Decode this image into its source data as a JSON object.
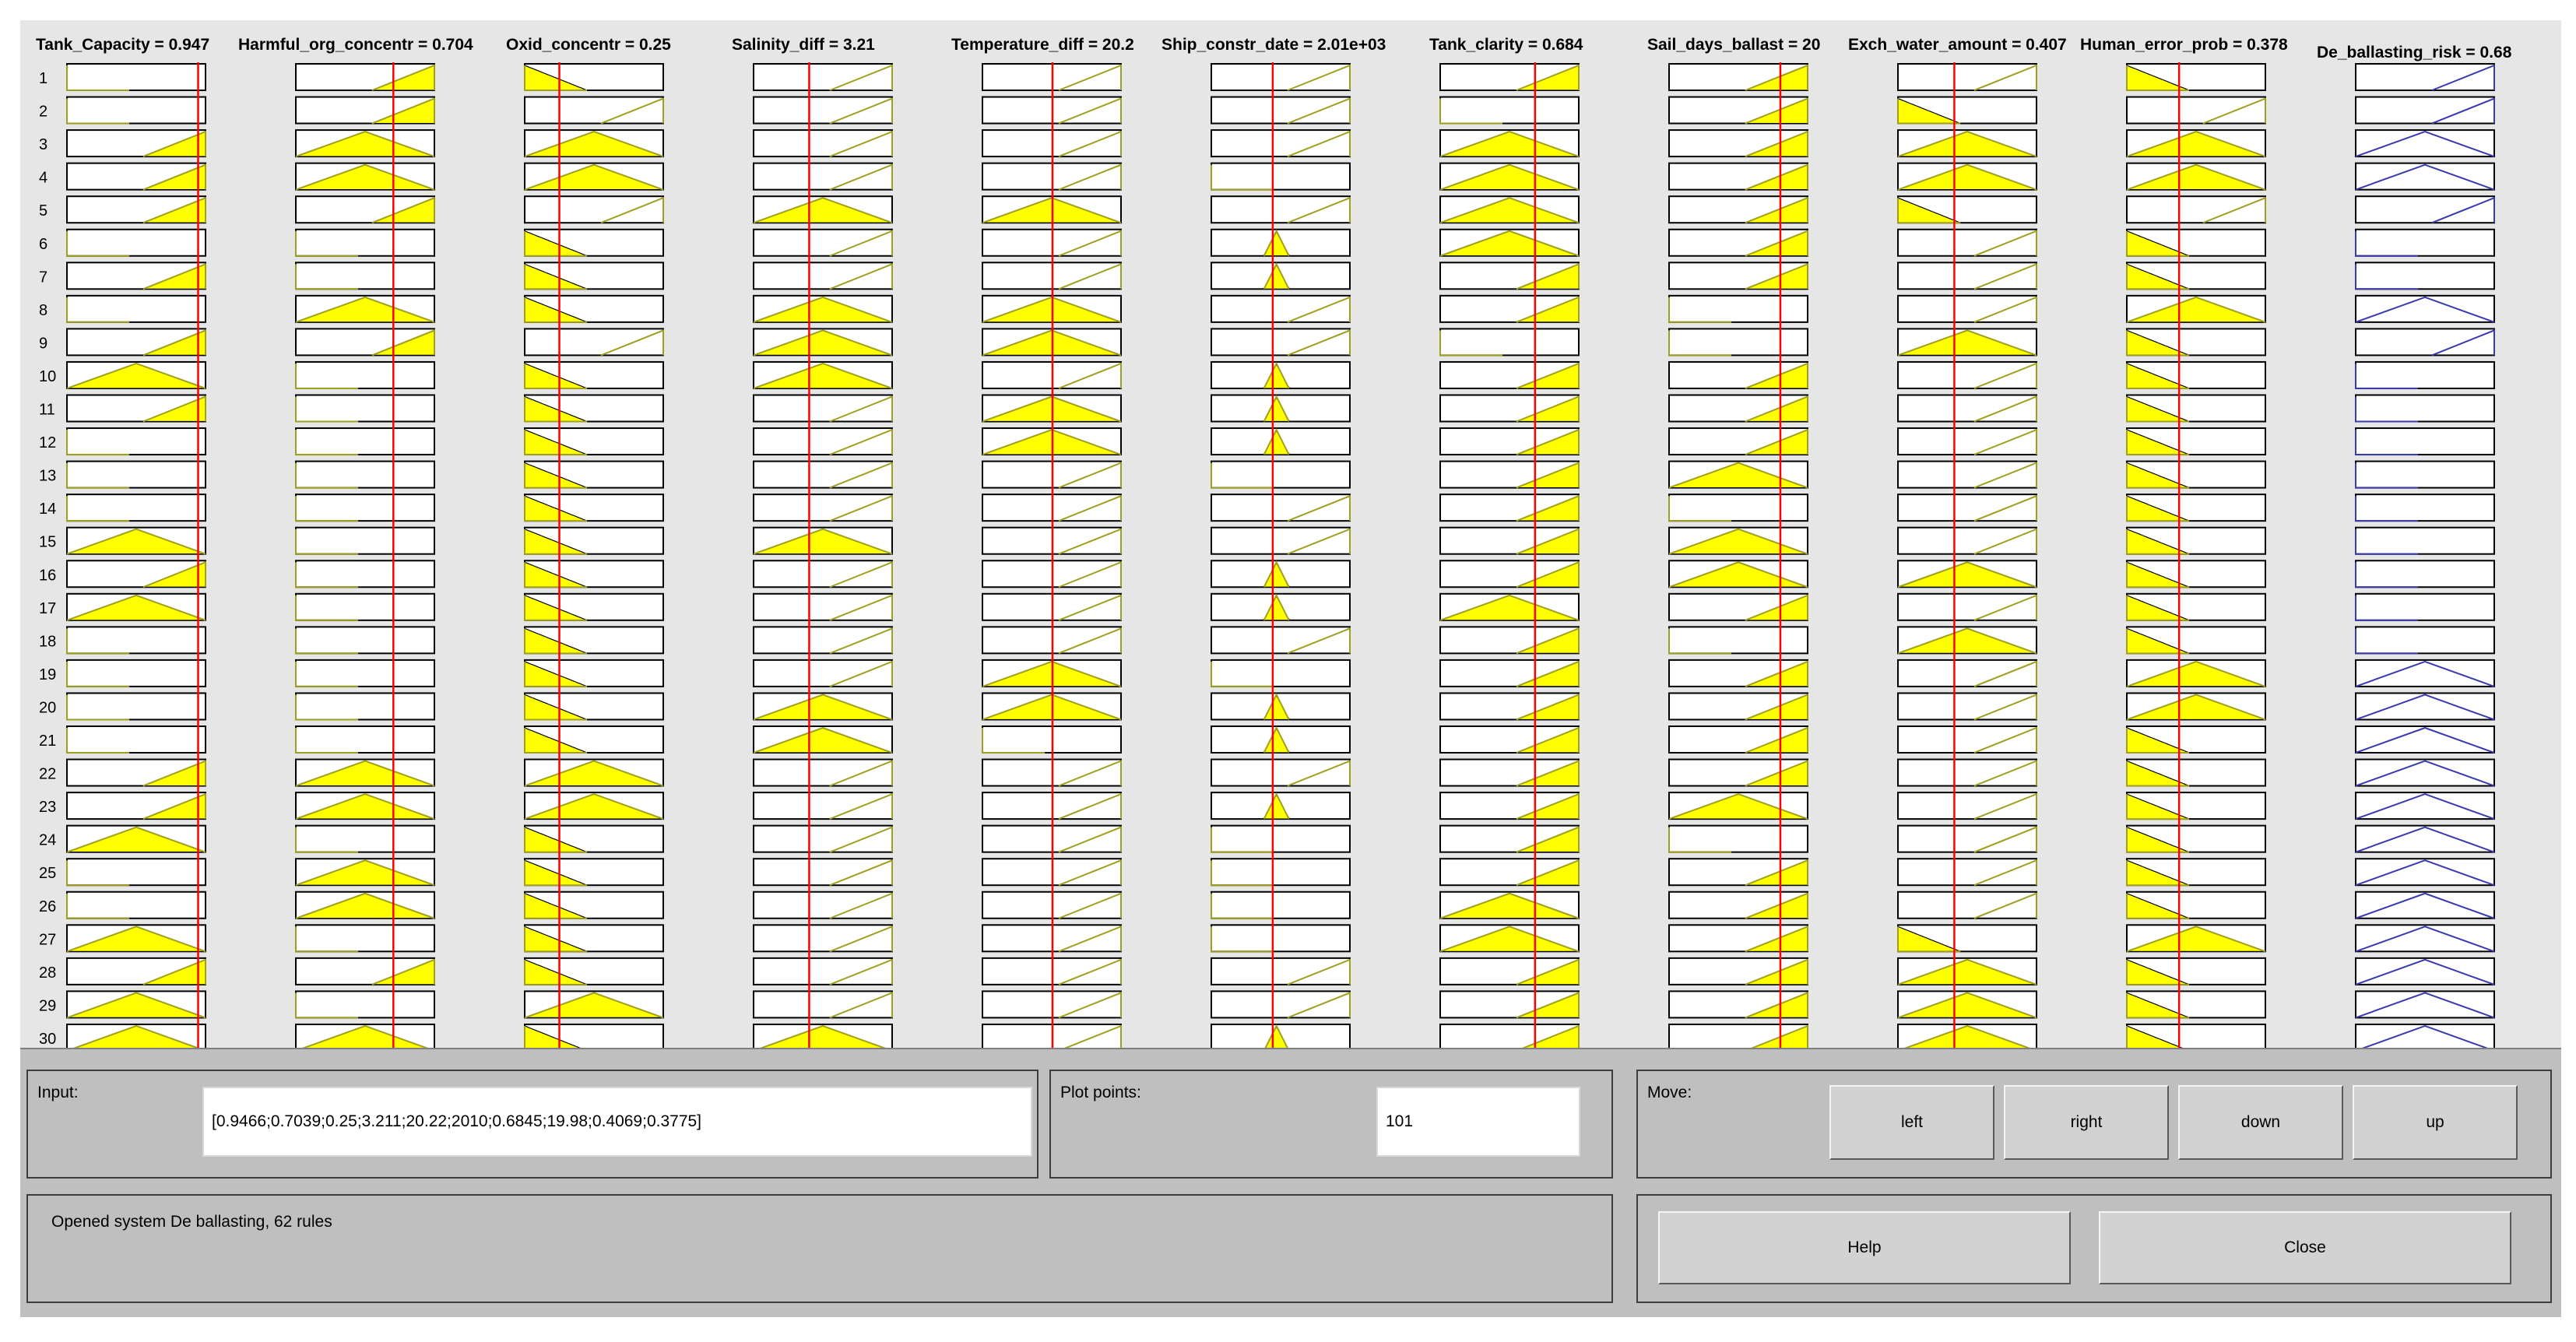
{
  "variables": [
    {
      "label": "Tank_Capacity = 0.947",
      "type": "input"
    },
    {
      "label": "Harmful_org_concentr = 0.704",
      "type": "input"
    },
    {
      "label": "Oxid_concentr = 0.25",
      "type": "input"
    },
    {
      "label": "Salinity_diff = 3.21",
      "type": "input"
    },
    {
      "label": "Temperature_diff = 20.2",
      "type": "input"
    },
    {
      "label": "Ship_constr_date = 2.01e+03",
      "type": "input"
    },
    {
      "label": "Tank_clarity = 0.684",
      "type": "input"
    },
    {
      "label": "Sail_days_ballast = 20",
      "type": "input"
    },
    {
      "label": "Exch_water_amount = 0.407",
      "type": "input"
    },
    {
      "label": "Human_error_prob = 0.378",
      "type": "input"
    },
    {
      "label": "De_ballasting_risk = 0.68",
      "type": "output"
    }
  ],
  "input_values": [
    0.9466,
    0.7039,
    0.25,
    0.4013,
    0.5055,
    0.4433,
    0.6845,
    0.8033,
    0.4069,
    0.3775
  ],
  "output_value": 0.68,
  "visible_rule_numbers": [
    "1",
    "2",
    "3",
    "4",
    "5",
    "6",
    "7",
    "8",
    "9",
    "10",
    "11",
    "12",
    "13",
    "14",
    "15",
    "16",
    "17",
    "18",
    "19",
    "20",
    "21",
    "22",
    "23",
    "24",
    "25",
    "26",
    "27",
    "28",
    "29",
    "30"
  ],
  "rules": [
    [
      "l",
      "r",
      "l",
      "r",
      "r",
      "r",
      "r",
      "r",
      "r",
      "l",
      "r"
    ],
    [
      "l",
      "r",
      "r",
      "r",
      "r",
      "r",
      "l",
      "r",
      "l",
      "r",
      "r"
    ],
    [
      "r",
      "m",
      "m",
      "r",
      "r",
      "r",
      "m",
      "r",
      "m",
      "m",
      "m"
    ],
    [
      "r",
      "m",
      "m",
      "r",
      "r",
      "l",
      "m",
      "r",
      "m",
      "m",
      "m"
    ],
    [
      "r",
      "r",
      "r",
      "m",
      "m",
      "r",
      "m",
      "r",
      "l",
      "r",
      "r"
    ],
    [
      "l",
      "l",
      "l",
      "r",
      "r",
      "s",
      "m",
      "r",
      "r",
      "l",
      "l"
    ],
    [
      "r",
      "l",
      "l",
      "r",
      "r",
      "s",
      "r",
      "r",
      "r",
      "l",
      "l"
    ],
    [
      "l",
      "m",
      "l",
      "m",
      "m",
      "r",
      "r",
      "l",
      "r",
      "m",
      "m"
    ],
    [
      "r",
      "r",
      "r",
      "m",
      "m",
      "r",
      "l",
      "l",
      "m",
      "l",
      "r"
    ],
    [
      "m",
      "l",
      "l",
      "m",
      "r",
      "s",
      "r",
      "r",
      "r",
      "l",
      "l"
    ],
    [
      "r",
      "l",
      "l",
      "r",
      "m",
      "s",
      "r",
      "r",
      "r",
      "l",
      "l"
    ],
    [
      "l",
      "l",
      "l",
      "r",
      "m",
      "s",
      "r",
      "r",
      "r",
      "l",
      "l"
    ],
    [
      "l",
      "l",
      "l",
      "r",
      "r",
      "l",
      "r",
      "m",
      "r",
      "l",
      "l"
    ],
    [
      "l",
      "l",
      "l",
      "r",
      "r",
      "r",
      "r",
      "l",
      "r",
      "l",
      "l"
    ],
    [
      "m",
      "l",
      "l",
      "m",
      "r",
      "r",
      "r",
      "m",
      "r",
      "l",
      "l"
    ],
    [
      "r",
      "l",
      "l",
      "r",
      "r",
      "s",
      "r",
      "m",
      "m",
      "l",
      "l"
    ],
    [
      "m",
      "l",
      "l",
      "r",
      "r",
      "s",
      "m",
      "r",
      "r",
      "l",
      "l"
    ],
    [
      "l",
      "l",
      "l",
      "r",
      "r",
      "r",
      "r",
      "l",
      "m",
      "l",
      "l"
    ],
    [
      "l",
      "l",
      "l",
      "r",
      "m",
      "l",
      "r",
      "r",
      "r",
      "m",
      "m"
    ],
    [
      "l",
      "l",
      "l",
      "m",
      "m",
      "s",
      "r",
      "r",
      "r",
      "m",
      "m"
    ],
    [
      "l",
      "l",
      "l",
      "m",
      "l",
      "s",
      "r",
      "r",
      "r",
      "l",
      "m"
    ],
    [
      "r",
      "m",
      "m",
      "r",
      "r",
      "r",
      "r",
      "r",
      "r",
      "l",
      "m"
    ],
    [
      "r",
      "m",
      "m",
      "r",
      "r",
      "s",
      "r",
      "m",
      "r",
      "l",
      "m"
    ],
    [
      "m",
      "l",
      "l",
      "r",
      "r",
      "l",
      "r",
      "l",
      "r",
      "l",
      "m"
    ],
    [
      "l",
      "m",
      "l",
      "r",
      "r",
      "l",
      "r",
      "r",
      "r",
      "l",
      "m"
    ],
    [
      "l",
      "m",
      "l",
      "r",
      "r",
      "l",
      "m",
      "r",
      "r",
      "l",
      "m"
    ],
    [
      "m",
      "l",
      "l",
      "r",
      "r",
      "l",
      "m",
      "r",
      "l",
      "m",
      "m"
    ],
    [
      "r",
      "r",
      "l",
      "r",
      "r",
      "r",
      "r",
      "r",
      "m",
      "l",
      "m"
    ],
    [
      "m",
      "l",
      "m",
      "r",
      "r",
      "r",
      "r",
      "r",
      "m",
      "l",
      "m"
    ],
    [
      "m",
      "m",
      "l",
      "m",
      "r",
      "s",
      "r",
      "r",
      "m",
      "l",
      "m"
    ]
  ],
  "colors": {
    "fired_fill": "#ffff00",
    "mf_line": "#a0a020",
    "output_line": "#3a3ab0",
    "output_fill": "#3a3ad0",
    "index_line": "#ff0000"
  },
  "controls": {
    "input_label": "Input:",
    "input_value": "[0.9466;0.7039;0.25;3.211;20.22;2010;0.6845;19.98;0.4069;0.3775]",
    "plot_points_label": "Plot points:",
    "plot_points_value": "101",
    "move_label": "Move:",
    "move_buttons": [
      "left",
      "right",
      "down",
      "up"
    ],
    "help_label": "Help",
    "close_label": "Close",
    "status_text": "Opened system De ballasting, 62 rules"
  }
}
